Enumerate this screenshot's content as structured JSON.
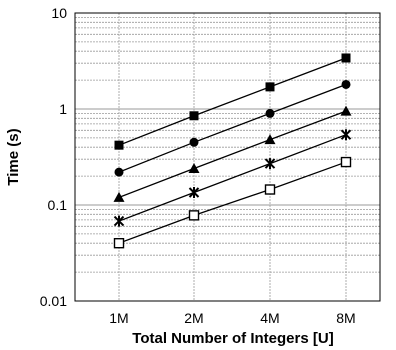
{
  "chart_data": {
    "type": "line",
    "title": "",
    "xlabel": "Total Number of Integers [U]",
    "ylabel": "Time (s)",
    "y_scale": "log",
    "ylim": [
      0.01,
      10
    ],
    "y_ticks": [
      {
        "value": 10,
        "label": "10"
      },
      {
        "value": 1,
        "label": "1"
      },
      {
        "value": 0.1,
        "label": "0.1"
      },
      {
        "value": 0.01,
        "label": "0.01"
      }
    ],
    "categories": [
      "1M",
      "2M",
      "4M",
      "8M"
    ],
    "grid": true,
    "legend": "none",
    "colors": {
      "series": "#000000",
      "grid": "#9a9a9a",
      "background": "#ffffff"
    },
    "series": [
      {
        "marker": "filled-square",
        "values": [
          0.42,
          0.85,
          1.7,
          3.4
        ]
      },
      {
        "marker": "filled-circle",
        "values": [
          0.22,
          0.45,
          0.9,
          1.8
        ]
      },
      {
        "marker": "filled-triangle",
        "values": [
          0.12,
          0.24,
          0.48,
          0.95
        ]
      },
      {
        "marker": "star",
        "values": [
          0.068,
          0.135,
          0.27,
          0.54
        ]
      },
      {
        "marker": "open-square",
        "values": [
          0.04,
          0.078,
          0.145,
          0.28
        ]
      }
    ]
  }
}
